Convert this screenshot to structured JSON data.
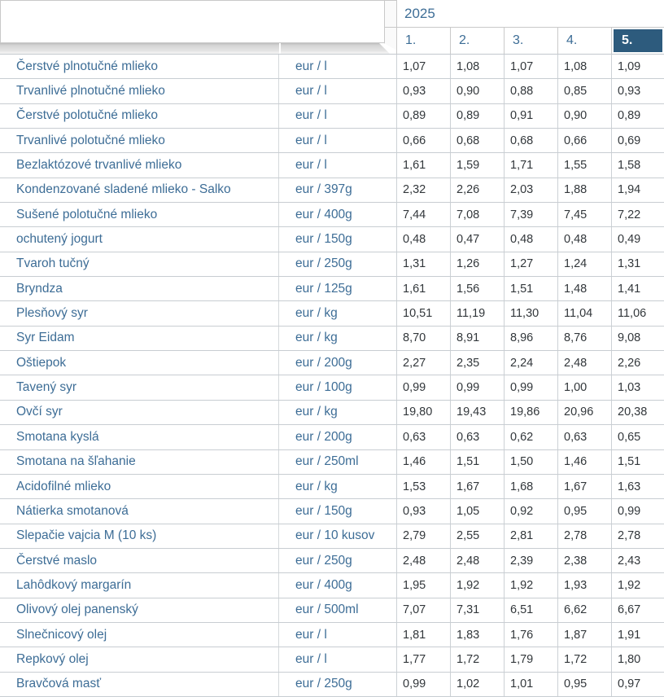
{
  "header": {
    "year": "2025",
    "months": [
      {
        "label": "1.",
        "active": false
      },
      {
        "label": "2.",
        "active": false
      },
      {
        "label": "3.",
        "active": false
      },
      {
        "label": "4.",
        "active": false
      },
      {
        "label": "5.",
        "active": true
      }
    ]
  },
  "table": {
    "rows": [
      {
        "name": "Čerstvé plnotučné mlieko",
        "unit": "eur / l",
        "values": [
          "1,07",
          "1,08",
          "1,07",
          "1,08",
          "1,09"
        ]
      },
      {
        "name": "Trvanlivé plnotučné mlieko",
        "unit": "eur / l",
        "values": [
          "0,93",
          "0,90",
          "0,88",
          "0,85",
          "0,93"
        ]
      },
      {
        "name": "Čerstvé polotučné mlieko",
        "unit": "eur / l",
        "values": [
          "0,89",
          "0,89",
          "0,91",
          "0,90",
          "0,89"
        ]
      },
      {
        "name": "Trvanlivé polotučné mlieko",
        "unit": "eur / l",
        "values": [
          "0,66",
          "0,68",
          "0,68",
          "0,66",
          "0,69"
        ]
      },
      {
        "name": "Bezlaktózové trvanlivé mlieko",
        "unit": "eur / l",
        "values": [
          "1,61",
          "1,59",
          "1,71",
          "1,55",
          "1,58"
        ]
      },
      {
        "name": "Kondenzované sladené mlieko - Salko",
        "unit": "eur / 397g",
        "values": [
          "2,32",
          "2,26",
          "2,03",
          "1,88",
          "1,94"
        ]
      },
      {
        "name": "Sušené polotučné mlieko",
        "unit": "eur / 400g",
        "values": [
          "7,44",
          "7,08",
          "7,39",
          "7,45",
          "7,22"
        ]
      },
      {
        "name": "ochutený jogurt",
        "unit": "eur / 150g",
        "values": [
          "0,48",
          "0,47",
          "0,48",
          "0,48",
          "0,49"
        ]
      },
      {
        "name": "Tvaroh tučný",
        "unit": "eur / 250g",
        "values": [
          "1,31",
          "1,26",
          "1,27",
          "1,24",
          "1,31"
        ]
      },
      {
        "name": "Bryndza",
        "unit": "eur / 125g",
        "values": [
          "1,61",
          "1,56",
          "1,51",
          "1,48",
          "1,41"
        ]
      },
      {
        "name": "Plesňový syr",
        "unit": "eur / kg",
        "values": [
          "10,51",
          "11,19",
          "11,30",
          "11,04",
          "11,06"
        ]
      },
      {
        "name": "Syr Eidam",
        "unit": "eur / kg",
        "values": [
          "8,70",
          "8,91",
          "8,96",
          "8,76",
          "9,08"
        ]
      },
      {
        "name": "Oštiepok",
        "unit": "eur / 200g",
        "values": [
          "2,27",
          "2,35",
          "2,24",
          "2,48",
          "2,26"
        ]
      },
      {
        "name": "Tavený syr",
        "unit": "eur / 100g",
        "values": [
          "0,99",
          "0,99",
          "0,99",
          "1,00",
          "1,03"
        ]
      },
      {
        "name": "Ovčí syr",
        "unit": "eur / kg",
        "values": [
          "19,80",
          "19,43",
          "19,86",
          "20,96",
          "20,38"
        ]
      },
      {
        "name": "Smotana kyslá",
        "unit": "eur / 200g",
        "values": [
          "0,63",
          "0,63",
          "0,62",
          "0,63",
          "0,65"
        ]
      },
      {
        "name": "Smotana na šľahanie",
        "unit": "eur / 250ml",
        "values": [
          "1,46",
          "1,51",
          "1,50",
          "1,46",
          "1,51"
        ]
      },
      {
        "name": "Acidofilné mlieko",
        "unit": "eur / kg",
        "values": [
          "1,53",
          "1,67",
          "1,68",
          "1,67",
          "1,63"
        ]
      },
      {
        "name": "Nátierka smotanová",
        "unit": "eur / 150g",
        "values": [
          "0,93",
          "1,05",
          "0,92",
          "0,95",
          "0,99"
        ]
      },
      {
        "name": "Slepačie vajcia M (10 ks)",
        "unit": "eur / 10 kusov",
        "values": [
          "2,79",
          "2,55",
          "2,81",
          "2,78",
          "2,78"
        ]
      },
      {
        "name": "Čerstvé maslo",
        "unit": "eur / 250g",
        "values": [
          "2,48",
          "2,48",
          "2,39",
          "2,38",
          "2,43"
        ]
      },
      {
        "name": "Lahôdkový margarín",
        "unit": "eur / 400g",
        "values": [
          "1,95",
          "1,92",
          "1,92",
          "1,93",
          "1,92"
        ]
      },
      {
        "name": "Olivový olej panenský",
        "unit": "eur / 500ml",
        "values": [
          "7,07",
          "7,31",
          "6,51",
          "6,62",
          "6,67"
        ]
      },
      {
        "name": "Slnečnicový olej",
        "unit": "eur / l",
        "values": [
          "1,81",
          "1,83",
          "1,76",
          "1,87",
          "1,91"
        ]
      },
      {
        "name": "Repkový olej",
        "unit": "eur / l",
        "values": [
          "1,77",
          "1,72",
          "1,79",
          "1,72",
          "1,80"
        ]
      },
      {
        "name": "Bravčová masť",
        "unit": "eur / 250g",
        "values": [
          "0,99",
          "1,02",
          "1,01",
          "0,95",
          "0,97"
        ]
      }
    ]
  },
  "colors": {
    "selected_month_bg": "#2d5b7d",
    "selected_month_text": "#ffffff",
    "label_text": "#3d6d96",
    "value_text": "#32373b",
    "grid_line": "#c8cdd2"
  }
}
